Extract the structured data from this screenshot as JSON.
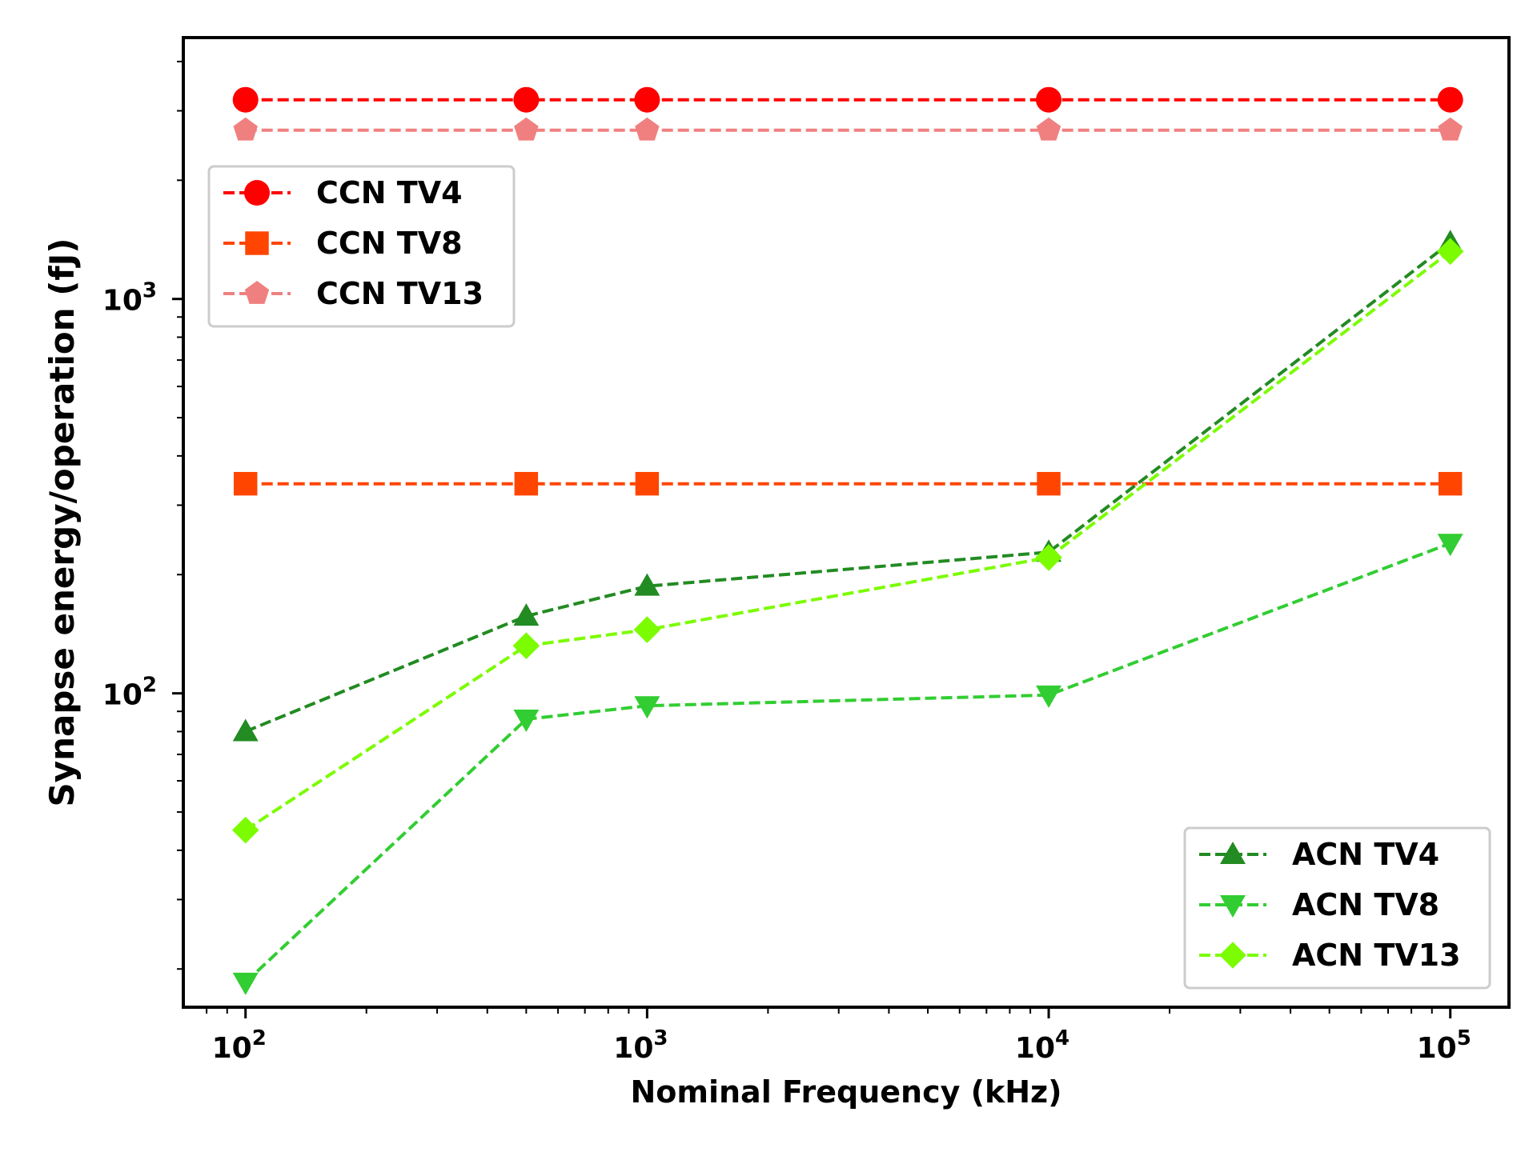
{
  "chart_data": {
    "type": "line",
    "xscale": "log",
    "yscale": "log",
    "xlabel": "Nominal Frequency (kHz)",
    "ylabel": "Synapse energy/operation (fJ)",
    "xlim": [
      70,
      140000
    ],
    "ylim": [
      16,
      4600
    ],
    "xticks": [
      {
        "value": 100,
        "base": "10",
        "exp": "2"
      },
      {
        "value": 1000,
        "base": "10",
        "exp": "3"
      },
      {
        "value": 10000,
        "base": "10",
        "exp": "4"
      },
      {
        "value": 100000,
        "base": "10",
        "exp": "5"
      }
    ],
    "yticks": [
      {
        "value": 100,
        "base": "10",
        "exp": "2"
      },
      {
        "value": 1000,
        "base": "10",
        "exp": "3"
      }
    ],
    "x": [
      100,
      500,
      1000,
      10000,
      100000
    ],
    "series": [
      {
        "name": "CCN TV4",
        "color": "#ff0000",
        "marker": "circle",
        "values": [
          3200,
          3200,
          3200,
          3200,
          3200
        ]
      },
      {
        "name": "CCN TV8",
        "color": "#ff4500",
        "marker": "square",
        "values": [
          340,
          340,
          340,
          340,
          340
        ]
      },
      {
        "name": "CCN TV13",
        "color": "#f08080",
        "marker": "pentagon",
        "values": [
          2680,
          2680,
          2680,
          2680,
          2680
        ]
      },
      {
        "name": "ACN TV4",
        "color": "#228b22",
        "marker": "triangle-up",
        "values": [
          80,
          157,
          187,
          228,
          1390
        ]
      },
      {
        "name": "ACN TV8",
        "color": "#32cd32",
        "marker": "triangle-down",
        "values": [
          18.5,
          86,
          93,
          99,
          240
        ]
      },
      {
        "name": "ACN TV13",
        "color": "#7cfc00",
        "marker": "diamond",
        "values": [
          45,
          132,
          145,
          221,
          1320
        ]
      }
    ],
    "legends": [
      {
        "position": "upper-left",
        "entries": [
          "CCN TV4",
          "CCN TV8",
          "CCN TV13"
        ]
      },
      {
        "position": "lower-right",
        "entries": [
          "ACN TV4",
          "ACN TV8",
          "ACN TV13"
        ]
      }
    ]
  }
}
